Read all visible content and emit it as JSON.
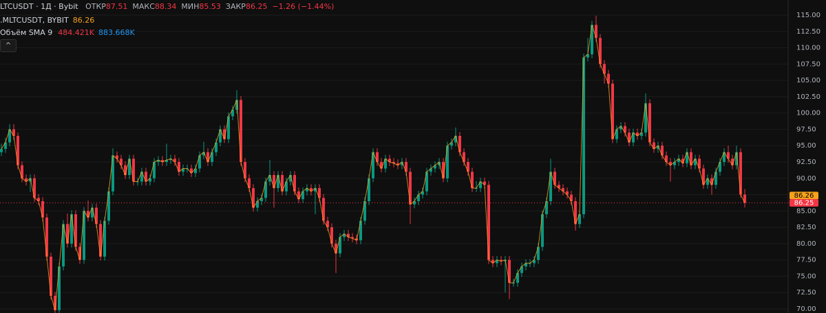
{
  "chart_data": {
    "type": "candlestick",
    "legend": {
      "symbol": "LTCUSDT · 1Д · Bybit",
      "open_label": "ОТКР",
      "high_label": "МАКС",
      "low_label": "МИН",
      "close_label": "ЗАКР",
      "change": "−1.26 (−1.44%)",
      "indicator": ".MLTCUSDT, BYBIT",
      "indicator_value": 86.26,
      "volume": "Объём SMA 9",
      "volume_values": [
        "484.421K",
        "883.668K"
      ]
    },
    "up_color": "#089981",
    "down_color": "#f23645",
    "line_color": "#f7a21b",
    "ylim": [
      69.37,
      117.31
    ],
    "yticks": [
      {
        "value": 70,
        "label": "70.00"
      },
      {
        "value": 72.5,
        "label": "72.50"
      },
      {
        "value": 75,
        "label": "75.00"
      },
      {
        "value": 77.5,
        "label": "77.50"
      },
      {
        "value": 80,
        "label": "80.00"
      },
      {
        "value": 82.5,
        "label": "82.50"
      },
      {
        "value": 85,
        "label": "85.00"
      },
      {
        "value": 87.5,
        "label": "87.50"
      },
      {
        "value": 90,
        "label": "90.00"
      },
      {
        "value": 92.5,
        "label": "92.50"
      },
      {
        "value": 95,
        "label": "95.00"
      },
      {
        "value": 97.5,
        "label": "97.50"
      },
      {
        "value": 100,
        "label": "100.00"
      },
      {
        "value": 102.5,
        "label": "102.50"
      },
      {
        "value": 105,
        "label": "105.00"
      },
      {
        "value": 107.5,
        "label": "107.50"
      },
      {
        "value": 110,
        "label": "110.00"
      },
      {
        "value": 112.5,
        "label": "112.50"
      },
      {
        "value": 115,
        "label": "115.00"
      }
    ],
    "grid": true,
    "candles": [
      [
        94.0,
        95.3,
        93.4,
        94.5
      ],
      [
        94.5,
        96.2,
        93.9,
        95.5
      ],
      [
        95.5,
        98.3,
        94.9,
        97.5
      ],
      [
        97.5,
        98.3,
        95.9,
        96.5
      ],
      [
        96.5,
        97.0,
        91.4,
        92.0
      ],
      [
        92.0,
        92.6,
        89.4,
        90.0
      ],
      [
        90.0,
        90.6,
        88.9,
        89.5
      ],
      [
        89.5,
        90.6,
        87.9,
        90.0
      ],
      [
        90.0,
        90.6,
        86.4,
        87.0
      ],
      [
        87.0,
        87.6,
        85.9,
        86.5
      ],
      [
        86.5,
        87.1,
        83.4,
        84.0
      ],
      [
        84.0,
        84.6,
        77.4,
        78.0
      ],
      [
        78.0,
        78.6,
        71.4,
        72.0
      ],
      [
        72.0,
        72.6,
        69.4,
        69.8
      ],
      [
        69.8,
        77.1,
        69.4,
        76.5
      ],
      [
        76.5,
        83.6,
        75.9,
        83.0
      ],
      [
        83.0,
        84.6,
        79.4,
        80.0
      ],
      [
        80.0,
        85.1,
        79.4,
        84.5
      ],
      [
        84.5,
        85.1,
        78.9,
        79.5
      ],
      [
        79.5,
        80.1,
        76.9,
        77.5
      ],
      [
        77.5,
        85.6,
        76.9,
        85.0
      ],
      [
        85.0,
        86.6,
        83.4,
        84.0
      ],
      [
        84.0,
        86.1,
        83.4,
        85.5
      ],
      [
        85.5,
        86.1,
        82.4,
        83.0
      ],
      [
        83.0,
        83.6,
        77.4,
        78.0
      ],
      [
        78.0,
        84.1,
        77.4,
        83.5
      ],
      [
        83.5,
        88.6,
        82.9,
        88.0
      ],
      [
        88.0,
        94.6,
        87.4,
        93.5
      ],
      [
        93.5,
        94.1,
        92.4,
        93.0
      ],
      [
        93.0,
        93.6,
        91.4,
        92.0
      ],
      [
        92.0,
        92.6,
        89.9,
        90.5
      ],
      [
        90.5,
        93.6,
        89.9,
        93.0
      ],
      [
        93.0,
        93.6,
        88.9,
        89.5
      ],
      [
        89.5,
        90.1,
        88.9,
        89.5
      ],
      [
        89.5,
        91.6,
        88.9,
        91.0
      ],
      [
        91.0,
        91.6,
        88.9,
        89.5
      ],
      [
        89.5,
        90.6,
        88.9,
        90.0
      ],
      [
        90.0,
        93.1,
        89.4,
        92.5
      ],
      [
        92.5,
        93.4,
        91.9,
        92.8
      ],
      [
        92.8,
        93.4,
        91.9,
        92.5
      ],
      [
        92.5,
        95.3,
        91.9,
        92.8
      ],
      [
        92.8,
        93.6,
        92.2,
        93.0
      ],
      [
        93.0,
        93.6,
        91.9,
        92.5
      ],
      [
        92.5,
        93.1,
        90.4,
        91.0
      ],
      [
        91.0,
        92.1,
        90.4,
        91.5
      ],
      [
        91.5,
        92.1,
        90.9,
        91.5
      ],
      [
        91.5,
        92.1,
        90.2,
        90.8
      ],
      [
        90.8,
        92.1,
        90.2,
        91.5
      ],
      [
        91.5,
        94.1,
        90.9,
        93.5
      ],
      [
        93.5,
        95.6,
        92.9,
        94.0
      ],
      [
        94.0,
        94.6,
        91.9,
        92.5
      ],
      [
        92.5,
        94.6,
        91.9,
        94.0
      ],
      [
        94.0,
        96.1,
        93.4,
        95.5
      ],
      [
        95.5,
        98.1,
        94.9,
        97.5
      ],
      [
        97.5,
        98.1,
        95.4,
        96.0
      ],
      [
        96.0,
        100.1,
        95.4,
        99.5
      ],
      [
        99.5,
        101.1,
        98.9,
        100.5
      ],
      [
        100.5,
        103.5,
        99.9,
        102.0
      ],
      [
        102.0,
        102.6,
        91.9,
        92.5
      ],
      [
        92.5,
        93.1,
        89.4,
        90.0
      ],
      [
        90.0,
        90.6,
        87.9,
        88.5
      ],
      [
        88.5,
        89.1,
        84.9,
        85.5
      ],
      [
        85.5,
        87.1,
        84.9,
        86.5
      ],
      [
        86.5,
        87.6,
        85.9,
        87.0
      ],
      [
        87.0,
        90.1,
        86.4,
        89.5
      ],
      [
        89.5,
        92.8,
        88.9,
        90.5
      ],
      [
        90.5,
        91.1,
        85.5,
        88.5
      ],
      [
        88.5,
        91.1,
        87.9,
        90.5
      ],
      [
        90.5,
        91.1,
        87.4,
        88.0
      ],
      [
        88.0,
        90.1,
        87.4,
        89.5
      ],
      [
        89.5,
        91.1,
        88.9,
        90.5
      ],
      [
        90.5,
        91.1,
        87.4,
        88.0
      ],
      [
        88.0,
        88.6,
        86.2,
        86.8
      ],
      [
        86.8,
        88.6,
        86.2,
        88.0
      ],
      [
        88.0,
        89.1,
        87.4,
        88.5
      ],
      [
        88.5,
        89.1,
        87.4,
        88.0
      ],
      [
        88.0,
        89.1,
        84.5,
        88.5
      ],
      [
        88.5,
        89.1,
        86.4,
        87.0
      ],
      [
        87.0,
        87.6,
        82.9,
        83.5
      ],
      [
        83.5,
        84.1,
        81.9,
        82.5
      ],
      [
        82.5,
        83.1,
        79.4,
        80.0
      ],
      [
        80.0,
        80.6,
        75.5,
        78.5
      ],
      [
        78.5,
        81.6,
        77.9,
        81.0
      ],
      [
        81.0,
        82.1,
        80.4,
        81.5
      ],
      [
        81.5,
        82.1,
        80.4,
        81.0
      ],
      [
        81.0,
        81.6,
        80.2,
        80.8
      ],
      [
        80.8,
        81.4,
        79.9,
        80.5
      ],
      [
        80.5,
        84.1,
        79.9,
        83.5
      ],
      [
        83.5,
        87.1,
        82.9,
        86.5
      ],
      [
        86.5,
        90.6,
        85.9,
        90.0
      ],
      [
        90.0,
        94.6,
        89.4,
        94.0
      ],
      [
        94.0,
        94.6,
        91.9,
        92.5
      ],
      [
        92.5,
        93.1,
        90.9,
        91.5
      ],
      [
        91.5,
        93.6,
        90.9,
        93.0
      ],
      [
        93.0,
        93.6,
        91.9,
        92.5
      ],
      [
        92.5,
        93.1,
        91.7,
        92.3
      ],
      [
        92.3,
        92.9,
        91.4,
        92.0
      ],
      [
        92.0,
        93.1,
        91.4,
        92.5
      ],
      [
        92.5,
        93.1,
        90.4,
        91.0
      ],
      [
        91.0,
        91.6,
        83.0,
        86.0
      ],
      [
        86.0,
        87.1,
        85.4,
        86.5
      ],
      [
        86.5,
        88.1,
        85.9,
        87.5
      ],
      [
        87.5,
        88.6,
        86.9,
        88.0
      ],
      [
        88.0,
        91.6,
        87.4,
        91.0
      ],
      [
        91.0,
        92.1,
        90.4,
        91.5
      ],
      [
        91.5,
        92.6,
        90.9,
        92.0
      ],
      [
        92.0,
        93.1,
        91.4,
        92.5
      ],
      [
        92.5,
        93.1,
        89.4,
        90.0
      ],
      [
        90.0,
        95.6,
        89.4,
        95.0
      ],
      [
        95.0,
        96.1,
        94.4,
        95.5
      ],
      [
        95.5,
        97.8,
        94.9,
        96.5
      ],
      [
        96.5,
        97.1,
        93.4,
        94.0
      ],
      [
        94.0,
        94.6,
        91.9,
        92.5
      ],
      [
        92.5,
        93.1,
        90.4,
        91.0
      ],
      [
        91.0,
        91.6,
        87.9,
        88.5
      ],
      [
        88.5,
        89.6,
        87.9,
        88.5
      ],
      [
        88.5,
        90.1,
        87.9,
        89.5
      ],
      [
        89.5,
        90.1,
        88.4,
        89.0
      ],
      [
        89.0,
        89.6,
        76.9,
        77.5
      ],
      [
        77.5,
        78.1,
        76.4,
        77.0
      ],
      [
        77.0,
        78.1,
        76.4,
        77.5
      ],
      [
        77.5,
        78.1,
        76.7,
        77.3
      ],
      [
        77.3,
        78.1,
        72.5,
        77.5
      ],
      [
        77.5,
        78.1,
        71.5,
        74.0
      ],
      [
        74.0,
        74.6,
        73.4,
        74.0
      ],
      [
        74.0,
        76.1,
        73.4,
        75.5
      ],
      [
        75.5,
        77.1,
        74.9,
        76.5
      ],
      [
        76.5,
        77.6,
        75.9,
        77.0
      ],
      [
        77.0,
        77.6,
        76.4,
        77.0
      ],
      [
        77.0,
        78.1,
        76.4,
        77.5
      ],
      [
        77.5,
        80.1,
        76.9,
        79.5
      ],
      [
        79.5,
        85.1,
        78.9,
        84.5
      ],
      [
        84.5,
        87.1,
        83.9,
        86.5
      ],
      [
        86.5,
        93.0,
        85.9,
        91.0
      ],
      [
        91.0,
        91.6,
        88.4,
        89.0
      ],
      [
        89.0,
        89.6,
        87.9,
        88.5
      ],
      [
        88.5,
        89.1,
        87.4,
        88.0
      ],
      [
        88.0,
        88.6,
        86.9,
        87.5
      ],
      [
        87.5,
        88.1,
        85.9,
        86.5
      ],
      [
        86.5,
        87.1,
        82.0,
        83.0
      ],
      [
        83.0,
        85.1,
        82.4,
        84.5
      ],
      [
        84.5,
        109.1,
        83.9,
        108.5
      ],
      [
        108.5,
        111.5,
        107.9,
        109.0
      ],
      [
        109.0,
        114.1,
        108.4,
        113.5
      ],
      [
        113.5,
        114.9,
        110.9,
        111.5
      ],
      [
        111.5,
        112.1,
        106.9,
        107.5
      ],
      [
        107.5,
        108.1,
        104.5,
        106.0
      ],
      [
        106.0,
        106.6,
        103.9,
        104.5
      ],
      [
        104.5,
        105.1,
        95.4,
        96.0
      ],
      [
        96.0,
        98.1,
        95.4,
        97.5
      ],
      [
        97.5,
        98.6,
        96.9,
        98.0
      ],
      [
        98.0,
        98.6,
        96.4,
        97.0
      ],
      [
        97.0,
        97.6,
        94.9,
        95.5
      ],
      [
        95.5,
        97.6,
        94.9,
        97.0
      ],
      [
        97.0,
        97.6,
        95.9,
        96.5
      ],
      [
        96.5,
        97.6,
        95.9,
        97.0
      ],
      [
        97.0,
        103.0,
        96.4,
        101.5
      ],
      [
        101.5,
        102.1,
        94.9,
        95.5
      ],
      [
        95.5,
        96.1,
        93.9,
        94.5
      ],
      [
        94.5,
        95.6,
        93.9,
        95.0
      ],
      [
        95.0,
        95.6,
        92.9,
        93.5
      ],
      [
        93.5,
        94.1,
        91.9,
        92.5
      ],
      [
        92.5,
        93.1,
        89.5,
        92.0
      ],
      [
        92.0,
        93.1,
        91.4,
        92.5
      ],
      [
        92.5,
        93.6,
        91.9,
        93.0
      ],
      [
        93.0,
        93.6,
        91.7,
        92.3
      ],
      [
        92.3,
        94.6,
        91.7,
        94.0
      ],
      [
        94.0,
        94.6,
        91.4,
        92.0
      ],
      [
        92.0,
        93.6,
        91.4,
        93.0
      ],
      [
        93.0,
        93.6,
        90.9,
        91.5
      ],
      [
        91.5,
        92.1,
        88.4,
        89.0
      ],
      [
        89.0,
        90.6,
        88.4,
        90.0
      ],
      [
        90.0,
        90.6,
        87.5,
        89.0
      ],
      [
        89.0,
        91.6,
        88.4,
        91.0
      ],
      [
        91.0,
        93.1,
        90.4,
        92.5
      ],
      [
        92.5,
        94.6,
        91.9,
        94.0
      ],
      [
        94.0,
        95.0,
        92.4,
        93.0
      ],
      [
        93.0,
        93.6,
        91.4,
        92.0
      ],
      [
        92.0,
        95.0,
        91.4,
        94.0
      ],
      [
        94.0,
        94.6,
        87.0,
        87.51
      ],
      [
        87.51,
        88.34,
        85.53,
        86.25
      ]
    ]
  }
}
